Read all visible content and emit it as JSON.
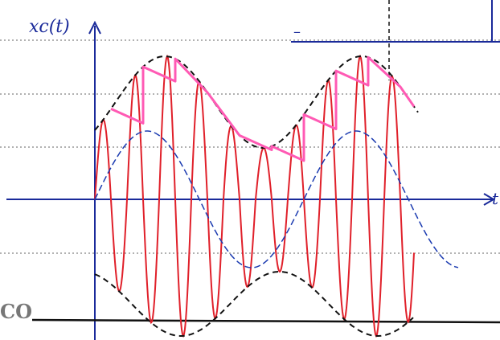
{
  "labels": {
    "y_axis": "xc(t)",
    "x_axis": "t",
    "corner": "CO",
    "top_minus": "–"
  }
}
